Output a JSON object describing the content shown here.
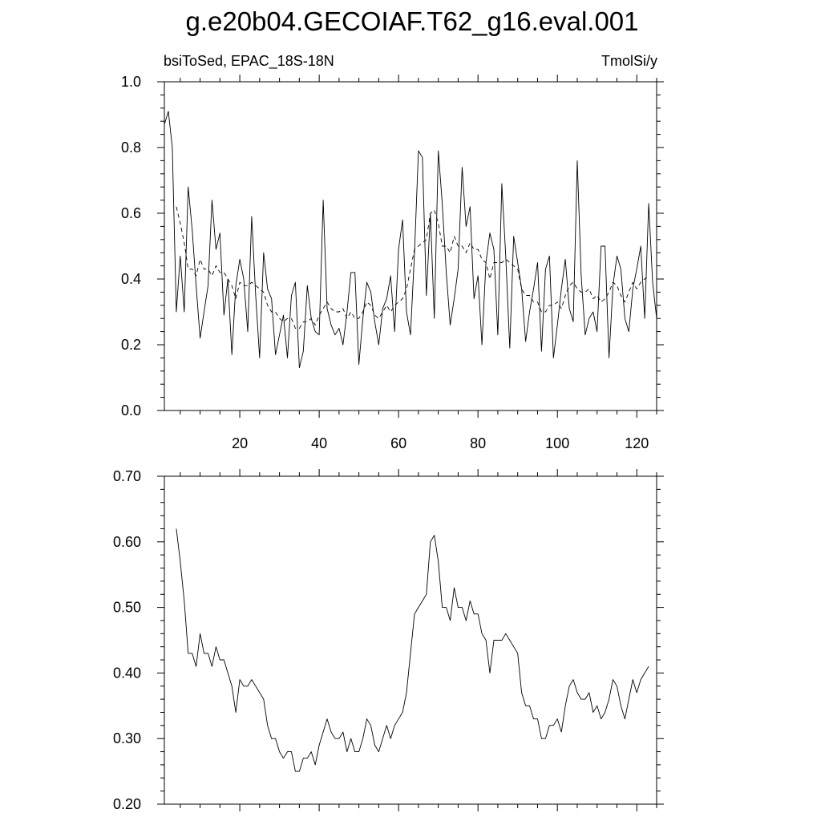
{
  "title": "g.e20b04.GECOIAF.T62_g16.eval.001",
  "colors": {
    "line": "#000000",
    "background": "#ffffff"
  },
  "chart_data": [
    {
      "type": "line",
      "left_label": "bsiToSed, EPAC_18S-18N",
      "right_label": "TmolSi/y",
      "xlim": [
        1,
        125
      ],
      "ylim": [
        0.0,
        1.0
      ],
      "x_ticks": [
        "20",
        "40",
        "60",
        "80",
        "100",
        "120"
      ],
      "y_ticks": [
        "0.0",
        "0.2",
        "0.4",
        "0.6",
        "0.8",
        "1.0"
      ],
      "grid": false,
      "series": [
        {
          "style": "solid",
          "x_start": 1,
          "values": [
            0.87,
            0.91,
            0.8,
            0.3,
            0.47,
            0.3,
            0.68,
            0.55,
            0.38,
            0.22,
            0.3,
            0.38,
            0.64,
            0.49,
            0.54,
            0.29,
            0.4,
            0.17,
            0.38,
            0.46,
            0.4,
            0.24,
            0.59,
            0.35,
            0.16,
            0.48,
            0.37,
            0.34,
            0.17,
            0.23,
            0.29,
            0.16,
            0.35,
            0.39,
            0.13,
            0.18,
            0.38,
            0.28,
            0.24,
            0.23,
            0.64,
            0.31,
            0.26,
            0.23,
            0.25,
            0.2,
            0.3,
            0.42,
            0.42,
            0.14,
            0.28,
            0.39,
            0.36,
            0.27,
            0.2,
            0.31,
            0.34,
            0.41,
            0.24,
            0.49,
            0.58,
            0.3,
            0.23,
            0.48,
            0.79,
            0.77,
            0.35,
            0.6,
            0.28,
            0.79,
            0.63,
            0.42,
            0.26,
            0.34,
            0.43,
            0.74,
            0.56,
            0.62,
            0.34,
            0.41,
            0.2,
            0.45,
            0.54,
            0.49,
            0.23,
            0.69,
            0.47,
            0.19,
            0.53,
            0.45,
            0.37,
            0.21,
            0.3,
            0.37,
            0.45,
            0.18,
            0.43,
            0.47,
            0.16,
            0.26,
            0.37,
            0.46,
            0.31,
            0.27,
            0.76,
            0.41,
            0.23,
            0.28,
            0.3,
            0.24,
            0.5,
            0.5,
            0.16,
            0.38,
            0.47,
            0.43,
            0.28,
            0.24,
            0.37,
            0.43,
            0.5,
            0.28,
            0.63,
            0.39,
            0.28
          ]
        },
        {
          "style": "dashed",
          "x_start": 4,
          "values": [
            0.62,
            0.57,
            0.51,
            0.43,
            0.43,
            0.41,
            0.46,
            0.43,
            0.43,
            0.41,
            0.44,
            0.42,
            0.42,
            0.4,
            0.38,
            0.34,
            0.39,
            0.38,
            0.38,
            0.39,
            0.38,
            0.37,
            0.36,
            0.32,
            0.3,
            0.3,
            0.28,
            0.27,
            0.28,
            0.28,
            0.25,
            0.25,
            0.27,
            0.27,
            0.28,
            0.26,
            0.29,
            0.31,
            0.33,
            0.31,
            0.3,
            0.3,
            0.31,
            0.28,
            0.3,
            0.28,
            0.28,
            0.3,
            0.33,
            0.32,
            0.29,
            0.28,
            0.3,
            0.32,
            0.3,
            0.32,
            0.33,
            0.34,
            0.37,
            0.43,
            0.49,
            0.5,
            0.51,
            0.52,
            0.6,
            0.61,
            0.57,
            0.5,
            0.5,
            0.48,
            0.53,
            0.5,
            0.5,
            0.48,
            0.51,
            0.49,
            0.49,
            0.46,
            0.45,
            0.4,
            0.45,
            0.45,
            0.45,
            0.46,
            0.45,
            0.44,
            0.43,
            0.37,
            0.35,
            0.35,
            0.33,
            0.33,
            0.3,
            0.3,
            0.32,
            0.32,
            0.33,
            0.31,
            0.35,
            0.38,
            0.39,
            0.37,
            0.36,
            0.36,
            0.37,
            0.34,
            0.35,
            0.33,
            0.34,
            0.36,
            0.39,
            0.38,
            0.35,
            0.33,
            0.36,
            0.39,
            0.37,
            0.39,
            0.4,
            0.41
          ]
        }
      ]
    },
    {
      "type": "line",
      "xlim": [
        1,
        125
      ],
      "ylim": [
        0.2,
        0.7
      ],
      "y_ticks": [
        "0.20",
        "0.30",
        "0.40",
        "0.50",
        "0.60",
        "0.70"
      ],
      "grid": false,
      "series": [
        {
          "style": "solid",
          "x_start": 4,
          "values": [
            0.62,
            0.57,
            0.51,
            0.43,
            0.43,
            0.41,
            0.46,
            0.43,
            0.43,
            0.41,
            0.44,
            0.42,
            0.42,
            0.4,
            0.38,
            0.34,
            0.39,
            0.38,
            0.38,
            0.39,
            0.38,
            0.37,
            0.36,
            0.32,
            0.3,
            0.3,
            0.28,
            0.27,
            0.28,
            0.28,
            0.25,
            0.25,
            0.27,
            0.27,
            0.28,
            0.26,
            0.29,
            0.31,
            0.33,
            0.31,
            0.3,
            0.3,
            0.31,
            0.28,
            0.3,
            0.28,
            0.28,
            0.3,
            0.33,
            0.32,
            0.29,
            0.28,
            0.3,
            0.32,
            0.3,
            0.32,
            0.33,
            0.34,
            0.37,
            0.43,
            0.49,
            0.5,
            0.51,
            0.52,
            0.6,
            0.61,
            0.57,
            0.5,
            0.5,
            0.48,
            0.53,
            0.5,
            0.5,
            0.48,
            0.51,
            0.49,
            0.49,
            0.46,
            0.45,
            0.4,
            0.45,
            0.45,
            0.45,
            0.46,
            0.45,
            0.44,
            0.43,
            0.37,
            0.35,
            0.35,
            0.33,
            0.33,
            0.3,
            0.3,
            0.32,
            0.32,
            0.33,
            0.31,
            0.35,
            0.38,
            0.39,
            0.37,
            0.36,
            0.36,
            0.37,
            0.34,
            0.35,
            0.33,
            0.34,
            0.36,
            0.39,
            0.38,
            0.35,
            0.33,
            0.36,
            0.39,
            0.37,
            0.39,
            0.4,
            0.41
          ]
        }
      ]
    }
  ]
}
